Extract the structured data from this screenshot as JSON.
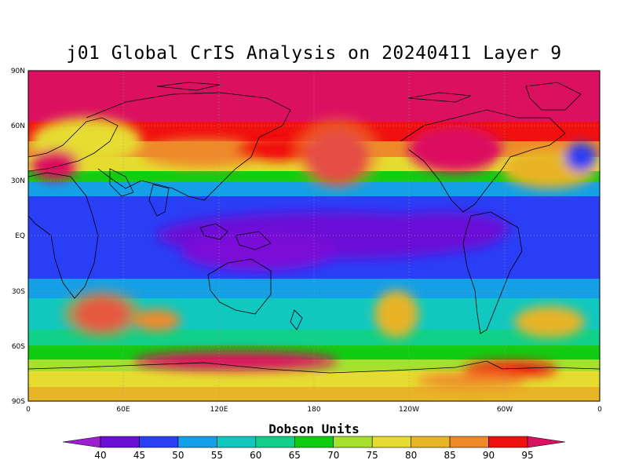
{
  "title": "j01 Global CrIS Analysis on 20240411 Layer 9",
  "lat_ticks": [
    "90N",
    "60N",
    "30N",
    "EQ",
    "30S",
    "60S",
    "90S"
  ],
  "lon_ticks": [
    "0",
    "60E",
    "120E",
    "180",
    "120W",
    "60W",
    "0"
  ],
  "colorbar": {
    "title": "Dobson Units",
    "ticks": [
      "40",
      "45",
      "50",
      "55",
      "60",
      "65",
      "70",
      "75",
      "80",
      "85",
      "90",
      "95"
    ],
    "colors": [
      "#9b20d0",
      "#6a0fd6",
      "#2a3ef5",
      "#14a0e6",
      "#10c8c0",
      "#10d08a",
      "#12cc12",
      "#a8e030",
      "#e6dc30",
      "#e8b428",
      "#ee8a2a",
      "#f01010",
      "#dc1060"
    ]
  },
  "map": {
    "projection": "cylindrical-equidistant",
    "lon_range": [
      0,
      360
    ],
    "lat_range": [
      -90,
      90
    ],
    "grid": true,
    "variable": "ozone",
    "units": "Dobson Units"
  }
}
